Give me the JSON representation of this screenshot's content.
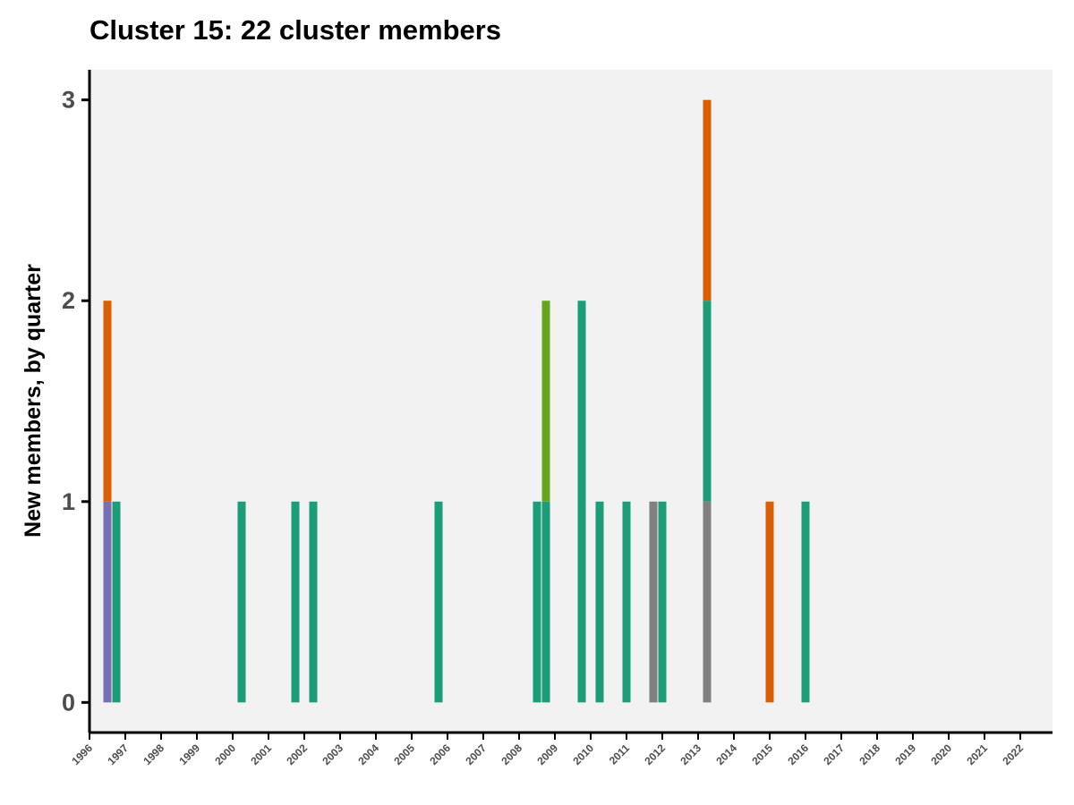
{
  "chart_data": {
    "type": "bar",
    "stacked": true,
    "title": "Cluster 15: 22 cluster members",
    "xlabel": "",
    "ylabel": "New members, by quarter",
    "xlim": [
      1996,
      2022.9
    ],
    "ylim": [
      -0.15,
      3.15
    ],
    "yticks": [
      0,
      1,
      2,
      3
    ],
    "xticks": [
      "1996",
      "1997",
      "1998",
      "1999",
      "2000",
      "2001",
      "2002",
      "2003",
      "2004",
      "2005",
      "2006",
      "2007",
      "2008",
      "2009",
      "2010",
      "2011",
      "2012",
      "2013",
      "2014",
      "2015",
      "2016",
      "2017",
      "2018",
      "2019",
      "2020",
      "2021",
      "2022"
    ],
    "grid": false,
    "background": "#f2f2f2",
    "series_colors": {
      "purple": "#7570b3",
      "orange": "#d95f02",
      "teal": "#1b9e77",
      "green": "#66a61e",
      "gray": "#808080"
    },
    "bars": [
      {
        "x": 1996.5,
        "segments": [
          {
            "color": "purple",
            "value": 1
          },
          {
            "color": "orange",
            "value": 1
          }
        ]
      },
      {
        "x": 1996.75,
        "segments": [
          {
            "color": "teal",
            "value": 1
          }
        ]
      },
      {
        "x": 2000.25,
        "segments": [
          {
            "color": "teal",
            "value": 1
          }
        ]
      },
      {
        "x": 2001.75,
        "segments": [
          {
            "color": "teal",
            "value": 1
          }
        ]
      },
      {
        "x": 2002.25,
        "segments": [
          {
            "color": "teal",
            "value": 1
          }
        ]
      },
      {
        "x": 2005.75,
        "segments": [
          {
            "color": "teal",
            "value": 1
          }
        ]
      },
      {
        "x": 2008.5,
        "segments": [
          {
            "color": "teal",
            "value": 1
          }
        ]
      },
      {
        "x": 2008.75,
        "segments": [
          {
            "color": "teal",
            "value": 1
          },
          {
            "color": "green",
            "value": 1
          }
        ]
      },
      {
        "x": 2009.75,
        "segments": [
          {
            "color": "teal",
            "value": 2
          }
        ]
      },
      {
        "x": 2010.25,
        "segments": [
          {
            "color": "teal",
            "value": 1
          }
        ]
      },
      {
        "x": 2011.0,
        "segments": [
          {
            "color": "teal",
            "value": 1
          }
        ]
      },
      {
        "x": 2011.75,
        "segments": [
          {
            "color": "gray",
            "value": 1
          }
        ]
      },
      {
        "x": 2012.0,
        "segments": [
          {
            "color": "teal",
            "value": 1
          }
        ]
      },
      {
        "x": 2013.25,
        "segments": [
          {
            "color": "gray",
            "value": 1
          },
          {
            "color": "teal",
            "value": 1
          },
          {
            "color": "orange",
            "value": 1
          }
        ]
      },
      {
        "x": 2015.0,
        "segments": [
          {
            "color": "orange",
            "value": 1
          }
        ]
      },
      {
        "x": 2016.0,
        "segments": [
          {
            "color": "teal",
            "value": 1
          }
        ]
      }
    ]
  }
}
